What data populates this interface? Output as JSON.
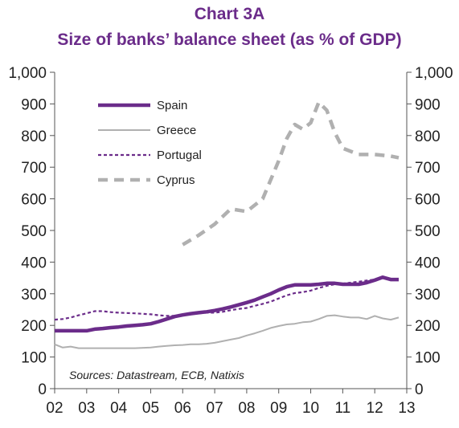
{
  "chart_data": {
    "type": "line",
    "title": "Chart 3A",
    "subtitle": "Size of banks’ balance sheet (as % of GDP)",
    "source": "Sources: Datastream, ECB, Natixis",
    "x_ticks": [
      "02",
      "03",
      "04",
      "05",
      "06",
      "07",
      "08",
      "09",
      "10",
      "11",
      "12",
      "13"
    ],
    "xlim": [
      2002,
      2013
    ],
    "ylim": [
      0,
      1000
    ],
    "y_ticks": [
      "0",
      "100",
      "200",
      "300",
      "400",
      "500",
      "600",
      "700",
      "800",
      "900",
      "1,000"
    ],
    "legend_position": "top-left",
    "series": [
      {
        "name": "Spain",
        "color": "#6b2c8a",
        "style": "solid-thick",
        "x": [
          2002.0,
          2002.5,
          2003.0,
          2003.25,
          2003.5,
          2003.75,
          2004.0,
          2004.25,
          2004.5,
          2004.75,
          2005.0,
          2005.25,
          2005.5,
          2005.75,
          2006.0,
          2006.25,
          2006.5,
          2006.75,
          2007.0,
          2007.25,
          2007.5,
          2007.75,
          2008.0,
          2008.25,
          2008.5,
          2008.75,
          2009.0,
          2009.25,
          2009.5,
          2009.75,
          2010.0,
          2010.25,
          2010.5,
          2010.75,
          2011.0,
          2011.25,
          2011.5,
          2011.75,
          2012.0,
          2012.25,
          2012.5,
          2012.75
        ],
        "y": [
          183,
          183,
          183,
          188,
          190,
          193,
          195,
          198,
          200,
          202,
          205,
          212,
          220,
          228,
          233,
          237,
          240,
          243,
          247,
          252,
          258,
          265,
          272,
          280,
          290,
          300,
          312,
          322,
          328,
          328,
          328,
          330,
          333,
          333,
          330,
          330,
          330,
          335,
          343,
          352,
          345,
          345
        ]
      },
      {
        "name": "Greece",
        "color": "#b0b0b0",
        "style": "solid-thin",
        "x": [
          2002.0,
          2002.25,
          2002.5,
          2002.75,
          2003.0,
          2003.5,
          2004.0,
          2004.5,
          2005.0,
          2005.25,
          2005.5,
          2005.75,
          2006.0,
          2006.25,
          2006.5,
          2006.75,
          2007.0,
          2007.25,
          2007.5,
          2007.75,
          2008.0,
          2008.25,
          2008.5,
          2008.75,
          2009.0,
          2009.25,
          2009.5,
          2009.75,
          2010.0,
          2010.25,
          2010.5,
          2010.75,
          2011.0,
          2011.25,
          2011.5,
          2011.75,
          2012.0,
          2012.25,
          2012.5,
          2012.75
        ],
        "y": [
          140,
          130,
          133,
          128,
          128,
          128,
          128,
          128,
          130,
          133,
          135,
          137,
          138,
          140,
          140,
          142,
          145,
          150,
          155,
          160,
          168,
          175,
          183,
          192,
          198,
          203,
          205,
          210,
          212,
          220,
          230,
          232,
          228,
          225,
          225,
          220,
          230,
          222,
          218,
          225
        ]
      },
      {
        "name": "Portugal",
        "color": "#6b2c8a",
        "style": "dotted",
        "x": [
          2002.0,
          2002.25,
          2002.5,
          2002.75,
          2003.0,
          2003.25,
          2003.5,
          2003.75,
          2004.0,
          2004.5,
          2005.0,
          2005.25,
          2005.5,
          2005.75,
          2006.0,
          2006.25,
          2006.5,
          2006.75,
          2007.0,
          2007.25,
          2007.5,
          2007.75,
          2008.0,
          2008.25,
          2008.5,
          2008.75,
          2009.0,
          2009.25,
          2009.5,
          2009.75,
          2010.0,
          2010.25,
          2010.5,
          2010.75,
          2011.0,
          2011.25,
          2011.5,
          2011.75,
          2012.0
        ],
        "y": [
          218,
          220,
          225,
          232,
          238,
          245,
          245,
          242,
          240,
          238,
          235,
          232,
          230,
          230,
          232,
          235,
          238,
          240,
          240,
          243,
          248,
          252,
          255,
          262,
          268,
          275,
          285,
          295,
          302,
          305,
          310,
          318,
          325,
          330,
          332,
          335,
          338,
          342,
          345
        ]
      },
      {
        "name": "Cyprus",
        "color": "#b0b0b0",
        "style": "dashed-thick",
        "x": [
          2006.0,
          2006.5,
          2007.0,
          2007.5,
          2008.0,
          2008.5,
          2009.0,
          2009.25,
          2009.5,
          2009.75,
          2010.0,
          2010.25,
          2010.5,
          2010.75,
          2011.0,
          2011.5,
          2012.0,
          2012.5,
          2012.75
        ],
        "y": [
          455,
          485,
          520,
          568,
          560,
          600,
          720,
          790,
          835,
          820,
          840,
          905,
          880,
          810,
          760,
          740,
          740,
          735,
          730
        ]
      }
    ]
  }
}
